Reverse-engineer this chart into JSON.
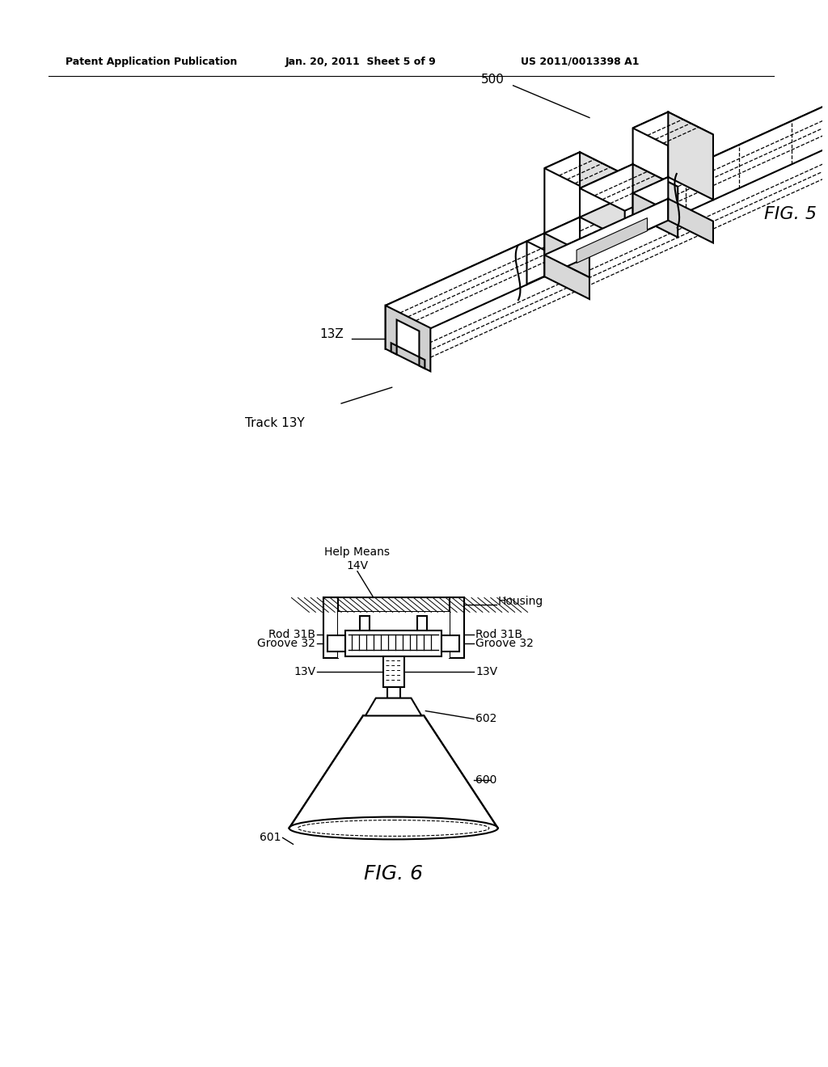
{
  "background_color": "#ffffff",
  "page_width": 10.24,
  "page_height": 13.2,
  "header_text_left": "Patent Application Publication",
  "header_text_mid": "Jan. 20, 2011  Sheet 5 of 9",
  "header_text_right": "US 2011/0013398 A1",
  "fig5_label": "FIG. 5",
  "fig6_label": "FIG. 6",
  "label_500": "500",
  "label_13Z": "13Z",
  "label_track13Y": "Track 13Y",
  "label_help_means": "Help Means",
  "label_14V": "14V",
  "label_housing": "Housing",
  "label_rod31B_left": "Rod 31B",
  "label_rod31B_right": "Rod 31B",
  "label_groove32_left": "Groove 32",
  "label_groove32_right": "Groove 32",
  "label_13V_left": "13V",
  "label_13V_right": "13V",
  "label_602": "602",
  "label_600": "600",
  "label_601": "601"
}
